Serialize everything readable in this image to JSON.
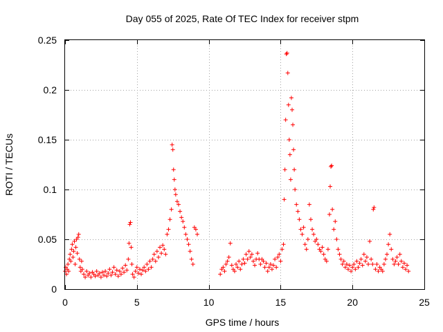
{
  "chart_data": {
    "type": "scatter",
    "title": "Day 055 of 2025, Rate Of TEC Index for receiver stpm",
    "xlabel": "GPS time / hours",
    "ylabel": "ROTI / TECUs",
    "xlim": [
      0,
      25
    ],
    "ylim": [
      0,
      0.25
    ],
    "xticks": [
      0,
      5,
      10,
      15,
      20,
      25
    ],
    "xtick_labels": [
      "0",
      "5",
      "10",
      "15",
      "20",
      "25"
    ],
    "yticks": [
      0,
      0.05,
      0.1,
      0.15,
      0.2,
      0.25
    ],
    "ytick_labels": [
      "0",
      "0.05",
      "0.1",
      "0.15",
      "0.2",
      "0.25"
    ],
    "grid": true,
    "marker": "+",
    "color": "#ff0000",
    "series": [
      {
        "name": "ROTI",
        "points": [
          [
            0.0,
            0.018
          ],
          [
            0.05,
            0.022
          ],
          [
            0.1,
            0.015
          ],
          [
            0.15,
            0.02
          ],
          [
            0.2,
            0.025
          ],
          [
            0.25,
            0.018
          ],
          [
            0.3,
            0.03
          ],
          [
            0.35,
            0.035
          ],
          [
            0.4,
            0.028
          ],
          [
            0.45,
            0.04
          ],
          [
            0.5,
            0.045
          ],
          [
            0.55,
            0.032
          ],
          [
            0.6,
            0.038
          ],
          [
            0.65,
            0.048
          ],
          [
            0.7,
            0.025
          ],
          [
            0.75,
            0.042
          ],
          [
            0.8,
            0.05
          ],
          [
            0.85,
            0.036
          ],
          [
            0.9,
            0.052
          ],
          [
            0.95,
            0.055
          ],
          [
            1.0,
            0.03
          ],
          [
            1.05,
            0.022
          ],
          [
            1.1,
            0.018
          ],
          [
            1.15,
            0.028
          ],
          [
            1.2,
            0.02
          ],
          [
            1.3,
            0.015
          ],
          [
            1.4,
            0.012
          ],
          [
            1.5,
            0.018
          ],
          [
            1.6,
            0.014
          ],
          [
            1.7,
            0.016
          ],
          [
            1.8,
            0.012
          ],
          [
            1.9,
            0.017
          ],
          [
            2.0,
            0.015
          ],
          [
            2.1,
            0.013
          ],
          [
            2.2,
            0.018
          ],
          [
            2.3,
            0.014
          ],
          [
            2.4,
            0.016
          ],
          [
            2.5,
            0.012
          ],
          [
            2.6,
            0.017
          ],
          [
            2.7,
            0.014
          ],
          [
            2.8,
            0.018
          ],
          [
            2.9,
            0.013
          ],
          [
            3.0,
            0.016
          ],
          [
            3.1,
            0.02
          ],
          [
            3.2,
            0.014
          ],
          [
            3.3,
            0.017
          ],
          [
            3.4,
            0.022
          ],
          [
            3.5,
            0.015
          ],
          [
            3.6,
            0.019
          ],
          [
            3.7,
            0.013
          ],
          [
            3.8,
            0.018
          ],
          [
            3.9,
            0.015
          ],
          [
            4.0,
            0.021
          ],
          [
            4.1,
            0.017
          ],
          [
            4.2,
            0.024
          ],
          [
            4.3,
            0.019
          ],
          [
            4.4,
            0.03
          ],
          [
            4.45,
            0.046
          ],
          [
            4.5,
            0.065
          ],
          [
            4.55,
            0.067
          ],
          [
            4.6,
            0.042
          ],
          [
            4.65,
            0.025
          ],
          [
            4.7,
            0.015
          ],
          [
            4.8,
            0.012
          ],
          [
            4.9,
            0.018
          ],
          [
            5.0,
            0.022
          ],
          [
            5.1,
            0.016
          ],
          [
            5.2,
            0.02
          ],
          [
            5.3,
            0.015
          ],
          [
            5.4,
            0.019
          ],
          [
            5.5,
            0.022
          ],
          [
            5.6,
            0.018
          ],
          [
            5.7,
            0.025
          ],
          [
            5.8,
            0.02
          ],
          [
            5.9,
            0.028
          ],
          [
            6.0,
            0.022
          ],
          [
            6.1,
            0.03
          ],
          [
            6.2,
            0.035
          ],
          [
            6.3,
            0.028
          ],
          [
            6.4,
            0.038
          ],
          [
            6.5,
            0.032
          ],
          [
            6.6,
            0.042
          ],
          [
            6.7,
            0.036
          ],
          [
            6.8,
            0.044
          ],
          [
            6.9,
            0.04
          ],
          [
            7.0,
            0.035
          ],
          [
            7.1,
            0.055
          ],
          [
            7.2,
            0.06
          ],
          [
            7.3,
            0.07
          ],
          [
            7.4,
            0.08
          ],
          [
            7.45,
            0.145
          ],
          [
            7.5,
            0.14
          ],
          [
            7.55,
            0.12
          ],
          [
            7.6,
            0.11
          ],
          [
            7.65,
            0.1
          ],
          [
            7.7,
            0.095
          ],
          [
            7.8,
            0.088
          ],
          [
            7.9,
            0.085
          ],
          [
            8.0,
            0.078
          ],
          [
            8.1,
            0.072
          ],
          [
            8.2,
            0.068
          ],
          [
            8.3,
            0.062
          ],
          [
            8.4,
            0.055
          ],
          [
            8.5,
            0.05
          ],
          [
            8.6,
            0.045
          ],
          [
            8.7,
            0.038
          ],
          [
            8.8,
            0.03
          ],
          [
            8.9,
            0.025
          ],
          [
            9.0,
            0.062
          ],
          [
            9.1,
            0.06
          ],
          [
            9.2,
            0.055
          ],
          [
            10.8,
            0.015
          ],
          [
            10.9,
            0.02
          ],
          [
            11.0,
            0.022
          ],
          [
            11.1,
            0.018
          ],
          [
            11.2,
            0.025
          ],
          [
            11.3,
            0.028
          ],
          [
            11.4,
            0.032
          ],
          [
            11.5,
            0.046
          ],
          [
            11.6,
            0.024
          ],
          [
            11.7,
            0.02
          ],
          [
            11.8,
            0.018
          ],
          [
            11.9,
            0.025
          ],
          [
            12.0,
            0.022
          ],
          [
            12.1,
            0.028
          ],
          [
            12.2,
            0.02
          ],
          [
            12.3,
            0.025
          ],
          [
            12.4,
            0.03
          ],
          [
            12.5,
            0.026
          ],
          [
            12.6,
            0.035
          ],
          [
            12.7,
            0.03
          ],
          [
            12.8,
            0.038
          ],
          [
            12.9,
            0.032
          ],
          [
            13.0,
            0.035
          ],
          [
            13.1,
            0.028
          ],
          [
            13.2,
            0.024
          ],
          [
            13.3,
            0.03
          ],
          [
            13.4,
            0.036
          ],
          [
            13.5,
            0.03
          ],
          [
            13.6,
            0.025
          ],
          [
            13.7,
            0.03
          ],
          [
            13.8,
            0.028
          ],
          [
            13.9,
            0.022
          ],
          [
            14.0,
            0.026
          ],
          [
            14.1,
            0.018
          ],
          [
            14.2,
            0.022
          ],
          [
            14.3,
            0.025
          ],
          [
            14.4,
            0.02
          ],
          [
            14.5,
            0.024
          ],
          [
            14.6,
            0.03
          ],
          [
            14.7,
            0.022
          ],
          [
            14.8,
            0.032
          ],
          [
            14.9,
            0.035
          ],
          [
            15.0,
            0.028
          ],
          [
            15.1,
            0.04
          ],
          [
            15.2,
            0.045
          ],
          [
            15.25,
            0.09
          ],
          [
            15.3,
            0.12
          ],
          [
            15.35,
            0.17
          ],
          [
            15.4,
            0.236
          ],
          [
            15.45,
            0.237
          ],
          [
            15.5,
            0.217
          ],
          [
            15.55,
            0.185
          ],
          [
            15.6,
            0.15
          ],
          [
            15.65,
            0.135
          ],
          [
            15.7,
            0.11
          ],
          [
            15.75,
            0.192
          ],
          [
            15.8,
            0.18
          ],
          [
            15.85,
            0.165
          ],
          [
            15.9,
            0.14
          ],
          [
            15.95,
            0.12
          ],
          [
            16.0,
            0.1
          ],
          [
            16.1,
            0.085
          ],
          [
            16.2,
            0.078
          ],
          [
            16.3,
            0.07
          ],
          [
            16.4,
            0.06
          ],
          [
            16.5,
            0.055
          ],
          [
            16.6,
            0.062
          ],
          [
            16.7,
            0.045
          ],
          [
            16.8,
            0.04
          ],
          [
            16.9,
            0.05
          ],
          [
            17.0,
            0.085
          ],
          [
            17.1,
            0.07
          ],
          [
            17.2,
            0.06
          ],
          [
            17.3,
            0.055
          ],
          [
            17.4,
            0.048
          ],
          [
            17.5,
            0.05
          ],
          [
            17.6,
            0.045
          ],
          [
            17.7,
            0.04
          ],
          [
            17.8,
            0.038
          ],
          [
            17.9,
            0.042
          ],
          [
            18.0,
            0.035
          ],
          [
            18.1,
            0.03
          ],
          [
            18.2,
            0.028
          ],
          [
            18.3,
            0.04
          ],
          [
            18.4,
            0.075
          ],
          [
            18.45,
            0.103
          ],
          [
            18.5,
            0.123
          ],
          [
            18.55,
            0.124
          ],
          [
            18.6,
            0.08
          ],
          [
            18.7,
            0.06
          ],
          [
            18.8,
            0.068
          ],
          [
            18.9,
            0.05
          ],
          [
            19.0,
            0.04
          ],
          [
            19.1,
            0.035
          ],
          [
            19.2,
            0.03
          ],
          [
            19.3,
            0.025
          ],
          [
            19.4,
            0.028
          ],
          [
            19.5,
            0.022
          ],
          [
            19.6,
            0.025
          ],
          [
            19.7,
            0.02
          ],
          [
            19.8,
            0.024
          ],
          [
            19.9,
            0.018
          ],
          [
            20.0,
            0.022
          ],
          [
            20.1,
            0.025
          ],
          [
            20.2,
            0.02
          ],
          [
            20.3,
            0.028
          ],
          [
            20.4,
            0.022
          ],
          [
            20.5,
            0.026
          ],
          [
            20.6,
            0.03
          ],
          [
            20.7,
            0.024
          ],
          [
            20.8,
            0.035
          ],
          [
            20.9,
            0.028
          ],
          [
            21.0,
            0.032
          ],
          [
            21.1,
            0.025
          ],
          [
            21.2,
            0.048
          ],
          [
            21.3,
            0.03
          ],
          [
            21.4,
            0.025
          ],
          [
            21.45,
            0.08
          ],
          [
            21.5,
            0.082
          ],
          [
            21.6,
            0.02
          ],
          [
            21.7,
            0.025
          ],
          [
            21.8,
            0.018
          ],
          [
            21.9,
            0.022
          ],
          [
            22.0,
            0.02
          ],
          [
            22.1,
            0.018
          ],
          [
            22.2,
            0.025
          ],
          [
            22.3,
            0.03
          ],
          [
            22.4,
            0.035
          ],
          [
            22.5,
            0.045
          ],
          [
            22.6,
            0.055
          ],
          [
            22.7,
            0.04
          ],
          [
            22.8,
            0.03
          ],
          [
            22.9,
            0.025
          ],
          [
            23.0,
            0.028
          ],
          [
            23.1,
            0.032
          ],
          [
            23.2,
            0.025
          ],
          [
            23.3,
            0.035
          ],
          [
            23.4,
            0.028
          ],
          [
            23.5,
            0.022
          ],
          [
            23.6,
            0.026
          ],
          [
            23.7,
            0.02
          ],
          [
            23.8,
            0.024
          ],
          [
            23.9,
            0.018
          ]
        ]
      }
    ]
  }
}
